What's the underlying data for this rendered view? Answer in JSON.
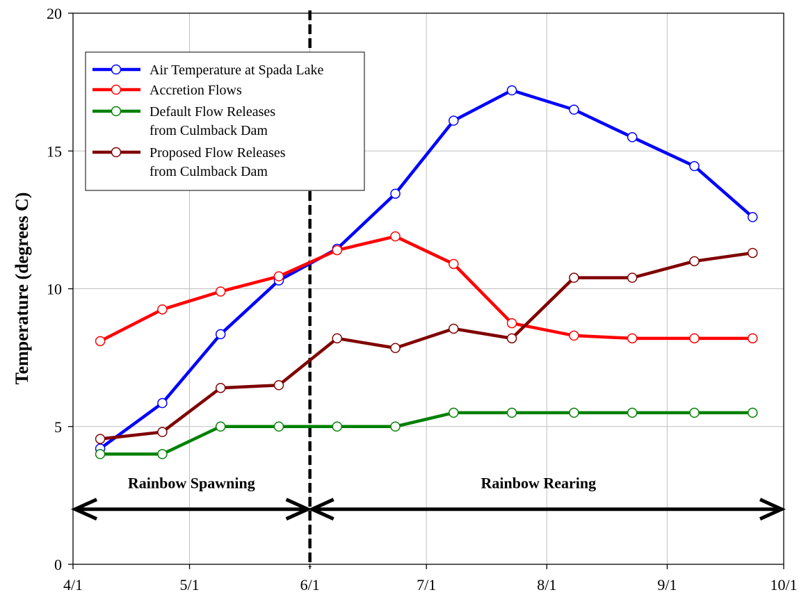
{
  "chart_data": {
    "type": "line",
    "title": "",
    "xlabel": "",
    "ylabel": "Temperature (degrees C)",
    "ylim": [
      0,
      20
    ],
    "yticks": [
      0,
      5,
      10,
      15,
      20
    ],
    "xlim": [
      "2024-04-01",
      "2024-10-01"
    ],
    "xticks": [
      {
        "date": "2024-04-01",
        "label": "4/1"
      },
      {
        "date": "2024-05-01",
        "label": "5/1"
      },
      {
        "date": "2024-06-01",
        "label": "6/1"
      },
      {
        "date": "2024-07-01",
        "label": "7/1"
      },
      {
        "date": "2024-08-01",
        "label": "8/1"
      },
      {
        "date": "2024-09-01",
        "label": "9/1"
      },
      {
        "date": "2024-10-01",
        "label": "10/1"
      }
    ],
    "grid": true,
    "legend_position": "top-left",
    "series": [
      {
        "name": "Air Temperature at Spada Lake",
        "color": "#0000ff",
        "x": [
          "2024-04-08",
          "2024-04-24",
          "2024-05-09",
          "2024-05-24",
          "2024-06-08",
          "2024-06-23",
          "2024-07-08",
          "2024-07-23",
          "2024-08-08",
          "2024-08-23",
          "2024-09-08",
          "2024-09-23"
        ],
        "y": [
          4.2,
          5.85,
          8.35,
          10.3,
          11.45,
          13.45,
          16.1,
          17.2,
          16.5,
          15.5,
          14.45,
          12.6
        ]
      },
      {
        "name": "Accretion Flows",
        "color": "#ff0000",
        "x": [
          "2024-04-08",
          "2024-04-24",
          "2024-05-09",
          "2024-05-24",
          "2024-06-08",
          "2024-06-23",
          "2024-07-08",
          "2024-07-23",
          "2024-08-08",
          "2024-08-23",
          "2024-09-08",
          "2024-09-23"
        ],
        "y": [
          8.1,
          9.25,
          9.9,
          10.45,
          11.4,
          11.9,
          10.9,
          8.75,
          8.3,
          8.2,
          8.2,
          8.2
        ]
      },
      {
        "name": "Default Flow Releases\nfrom Culmback Dam",
        "color": "#008000",
        "x": [
          "2024-04-08",
          "2024-04-24",
          "2024-05-09",
          "2024-05-24",
          "2024-06-08",
          "2024-06-23",
          "2024-07-08",
          "2024-07-23",
          "2024-08-08",
          "2024-08-23",
          "2024-09-08",
          "2024-09-23"
        ],
        "y": [
          4.0,
          4.0,
          5.0,
          5.0,
          5.0,
          5.0,
          5.5,
          5.5,
          5.5,
          5.5,
          5.5,
          5.5
        ]
      },
      {
        "name": "Proposed Flow Releases\nfrom Culmback Dam",
        "color": "#800000",
        "x": [
          "2024-04-08",
          "2024-04-24",
          "2024-05-09",
          "2024-05-24",
          "2024-06-08",
          "2024-06-23",
          "2024-07-08",
          "2024-07-23",
          "2024-08-08",
          "2024-08-23",
          "2024-09-08",
          "2024-09-23"
        ],
        "y": [
          4.55,
          4.8,
          6.4,
          6.5,
          8.2,
          7.85,
          8.55,
          8.2,
          10.4,
          10.4,
          11.0,
          11.3
        ]
      }
    ],
    "annotations": {
      "divider_date": "2024-06-01",
      "phases": [
        {
          "label": "Rainbow Spawning",
          "start": "2024-04-01",
          "end": "2024-06-01",
          "y": 2
        },
        {
          "label": "Rainbow Rearing",
          "start": "2024-06-01",
          "end": "2024-10-01",
          "y": 2
        }
      ]
    }
  }
}
